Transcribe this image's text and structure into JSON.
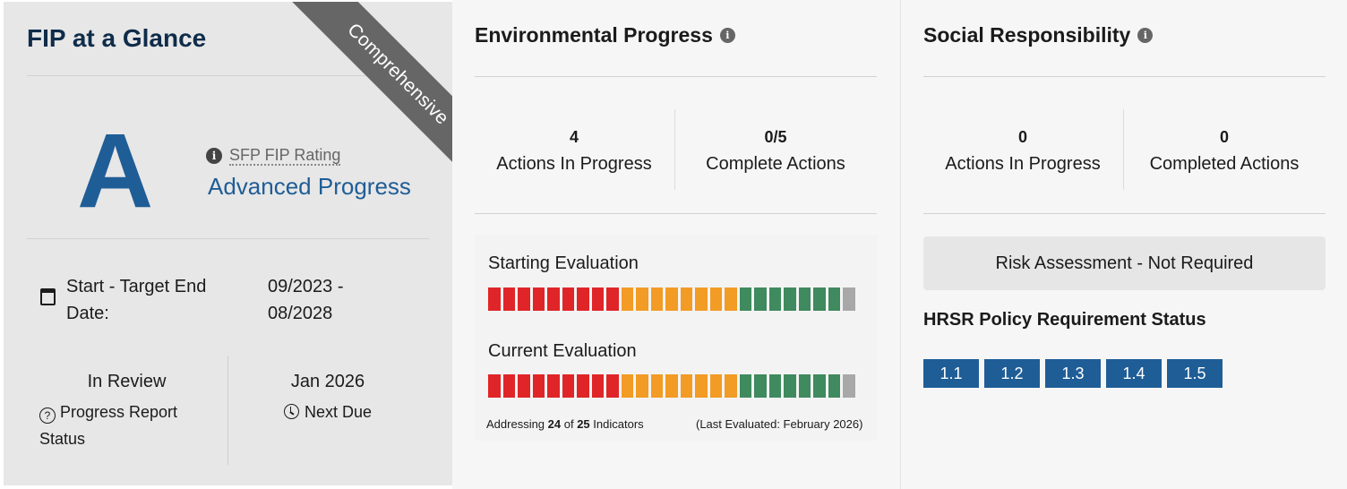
{
  "glance": {
    "title": "FIP at a Glance",
    "ribbon": "Comprehensive",
    "grade": "A",
    "rating_label": "SFP FIP Rating",
    "rating_value": "Advanced Progress",
    "date_label": "Start - Target End Date:",
    "date_value": "09/2023 - 08/2028",
    "review_status": "In Review",
    "review_label": "Progress Report Status",
    "due_date": "Jan 2026",
    "due_label": "Next Due"
  },
  "environmental": {
    "title": "Environmental Progress",
    "stats": [
      {
        "value": "4",
        "label": "Actions In Progress"
      },
      {
        "value": "0/5",
        "label": "Complete Actions"
      }
    ],
    "starting_title": "Starting Evaluation",
    "current_title": "Current Evaluation",
    "starting_levels": [
      "red",
      "red",
      "red",
      "red",
      "red",
      "red",
      "red",
      "red",
      "red",
      "orange",
      "orange",
      "orange",
      "orange",
      "orange",
      "orange",
      "orange",
      "orange",
      "green",
      "green",
      "green",
      "green",
      "green",
      "green",
      "green",
      "grey"
    ],
    "current_levels": [
      "red",
      "red",
      "red",
      "red",
      "red",
      "red",
      "red",
      "red",
      "red",
      "orange",
      "orange",
      "orange",
      "orange",
      "orange",
      "orange",
      "orange",
      "orange",
      "green",
      "green",
      "green",
      "green",
      "green",
      "green",
      "green",
      "grey"
    ],
    "footer_prefix": "Addressing ",
    "footer_addressed": "24",
    "footer_of": " of ",
    "footer_total": "25",
    "footer_suffix": " Indicators",
    "last_evaluated": "(Last Evaluated: February 2026)"
  },
  "social": {
    "title": "Social Responsibility",
    "stats": [
      {
        "value": "0",
        "label": "Actions In Progress"
      },
      {
        "value": "0",
        "label": "Completed Actions"
      }
    ],
    "risk_assessment": "Risk Assessment - Not Required",
    "hrsr_title": "HRSR Policy Requirement Status",
    "hrsr_items": [
      "1.1",
      "1.2",
      "1.3",
      "1.4",
      "1.5"
    ]
  },
  "colors": {
    "red": "#e02528",
    "orange": "#f29b25",
    "green": "#3f8a5e",
    "grey": "#a8a8a8",
    "brand_blue": "#1f5d96",
    "ribbon": "#666666"
  },
  "icons": {
    "info": "info-icon",
    "calendar": "calendar-icon",
    "help": "question-circle-icon",
    "clock": "clock-icon"
  }
}
